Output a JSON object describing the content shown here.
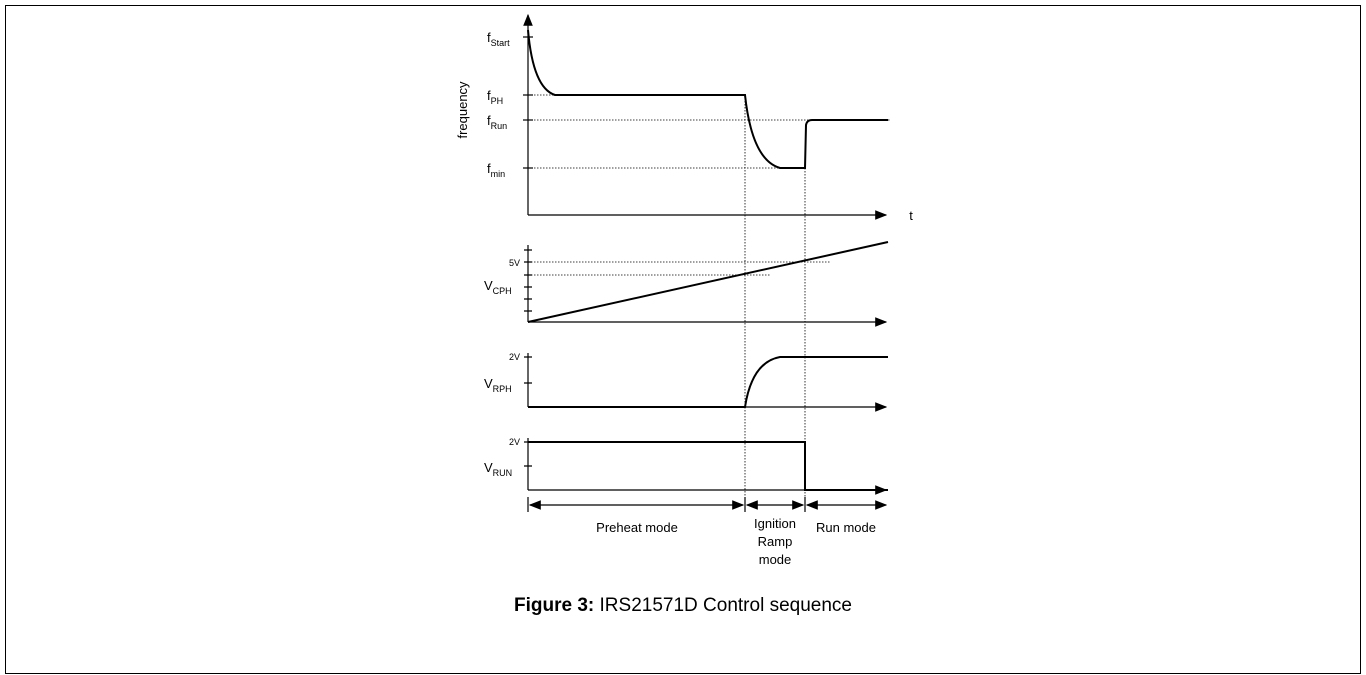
{
  "diagram": {
    "frequency_plot": {
      "y_label": "frequency",
      "x_label": "t",
      "levels": [
        {
          "main": "f",
          "sub": "Start"
        },
        {
          "main": "f",
          "sub": "PH"
        },
        {
          "main": "f",
          "sub": "Run"
        },
        {
          "main": "f",
          "sub": "min"
        }
      ]
    },
    "vcph_plot": {
      "label": {
        "main": "V",
        "sub": "CPH"
      },
      "tick_label": "5V"
    },
    "vrph_plot": {
      "label": {
        "main": "V",
        "sub": "RPH"
      },
      "tick_label": "2V"
    },
    "vrun_plot": {
      "label": {
        "main": "V",
        "sub": "RUN"
      },
      "tick_label": "2V"
    },
    "modes": [
      "Preheat mode",
      [
        "Ignition",
        "Ramp",
        "mode"
      ],
      "Run mode"
    ],
    "caption": {
      "number": "Figure 3:",
      "text": " IRS21571D Control sequence"
    }
  }
}
